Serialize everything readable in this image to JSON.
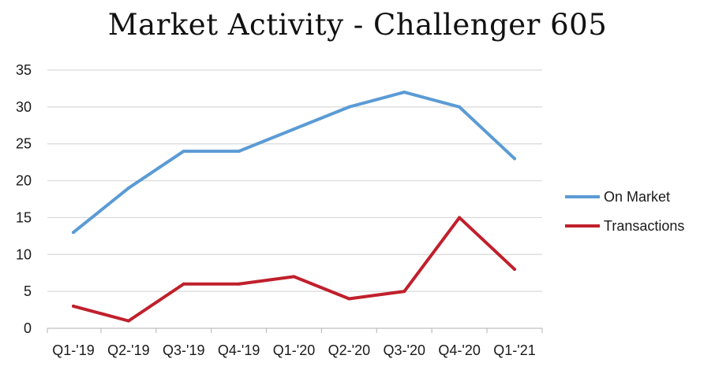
{
  "chart_data": {
    "type": "line",
    "title": "Market Activity - Challenger 605",
    "xlabel": "",
    "ylabel": "",
    "categories": [
      "Q1-'19",
      "Q2-'19",
      "Q3-'19",
      "Q4-'19",
      "Q1-'20",
      "Q2-'20",
      "Q3-'20",
      "Q4-'20",
      "Q1-'21"
    ],
    "ylim": [
      0,
      35
    ],
    "yticks": [
      0,
      5,
      10,
      15,
      20,
      25,
      30,
      35
    ],
    "grid": true,
    "legend_position": "right",
    "series": [
      {
        "name": "On Market",
        "color": "#5b9bd5",
        "values": [
          13,
          19,
          24,
          24,
          27,
          30,
          32,
          30,
          23
        ]
      },
      {
        "name": "Transactions",
        "color": "#c0202c",
        "values": [
          3,
          1,
          6,
          6,
          7,
          4,
          5,
          15,
          8
        ]
      }
    ]
  }
}
